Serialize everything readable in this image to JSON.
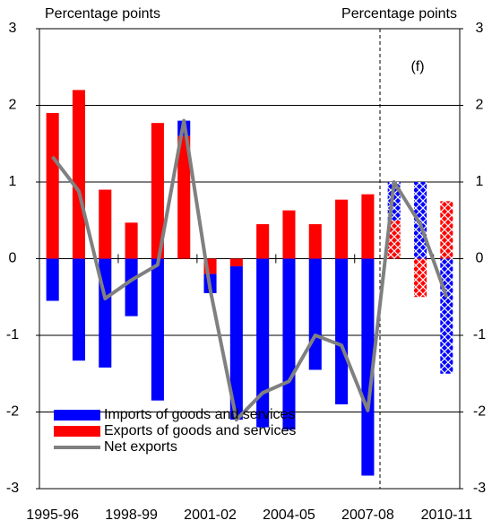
{
  "chart_data": {
    "type": "bar",
    "left_axis_label": "Percentage points",
    "right_axis_label": "Percentage points",
    "annotation": "(f)",
    "categories": [
      "1995-96",
      null,
      null,
      "1998-99",
      null,
      null,
      "2001-02",
      null,
      null,
      "2004-05",
      null,
      null,
      "2007-08",
      null,
      null,
      "2010-11"
    ],
    "series": [
      {
        "name": "Imports of goods and services",
        "color": "#0000ff",
        "values": [
          -0.55,
          -1.33,
          -1.42,
          -0.75,
          -1.85,
          0.2,
          -0.25,
          -2.0,
          -2.2,
          -2.23,
          -1.45,
          -1.9,
          -2.83,
          0.5,
          1.0,
          -1.5
        ]
      },
      {
        "name": "Exports of goods and services",
        "color": "#ff0000",
        "values": [
          1.9,
          2.2,
          0.9,
          0.47,
          1.77,
          1.6,
          -0.2,
          -0.1,
          0.45,
          0.63,
          0.45,
          0.77,
          0.84,
          0.5,
          -0.5,
          0.75
        ]
      },
      {
        "name": "Net exports",
        "type": "line",
        "color": "#808080",
        "values": [
          1.33,
          0.88,
          -0.52,
          -0.28,
          -0.08,
          1.8,
          -0.4,
          -2.1,
          -1.75,
          -1.6,
          -1.0,
          -1.13,
          -1.98,
          1.0,
          0.45,
          -0.5
        ]
      }
    ],
    "ylim": [
      -3,
      3
    ],
    "yticks": [
      -3,
      -2,
      -1,
      0,
      1,
      2,
      3
    ],
    "y2lim": [
      -3,
      3
    ],
    "y2ticks": [
      -3,
      -2,
      -1,
      0,
      1,
      2,
      3
    ],
    "grid": true,
    "legend": "lower left"
  }
}
